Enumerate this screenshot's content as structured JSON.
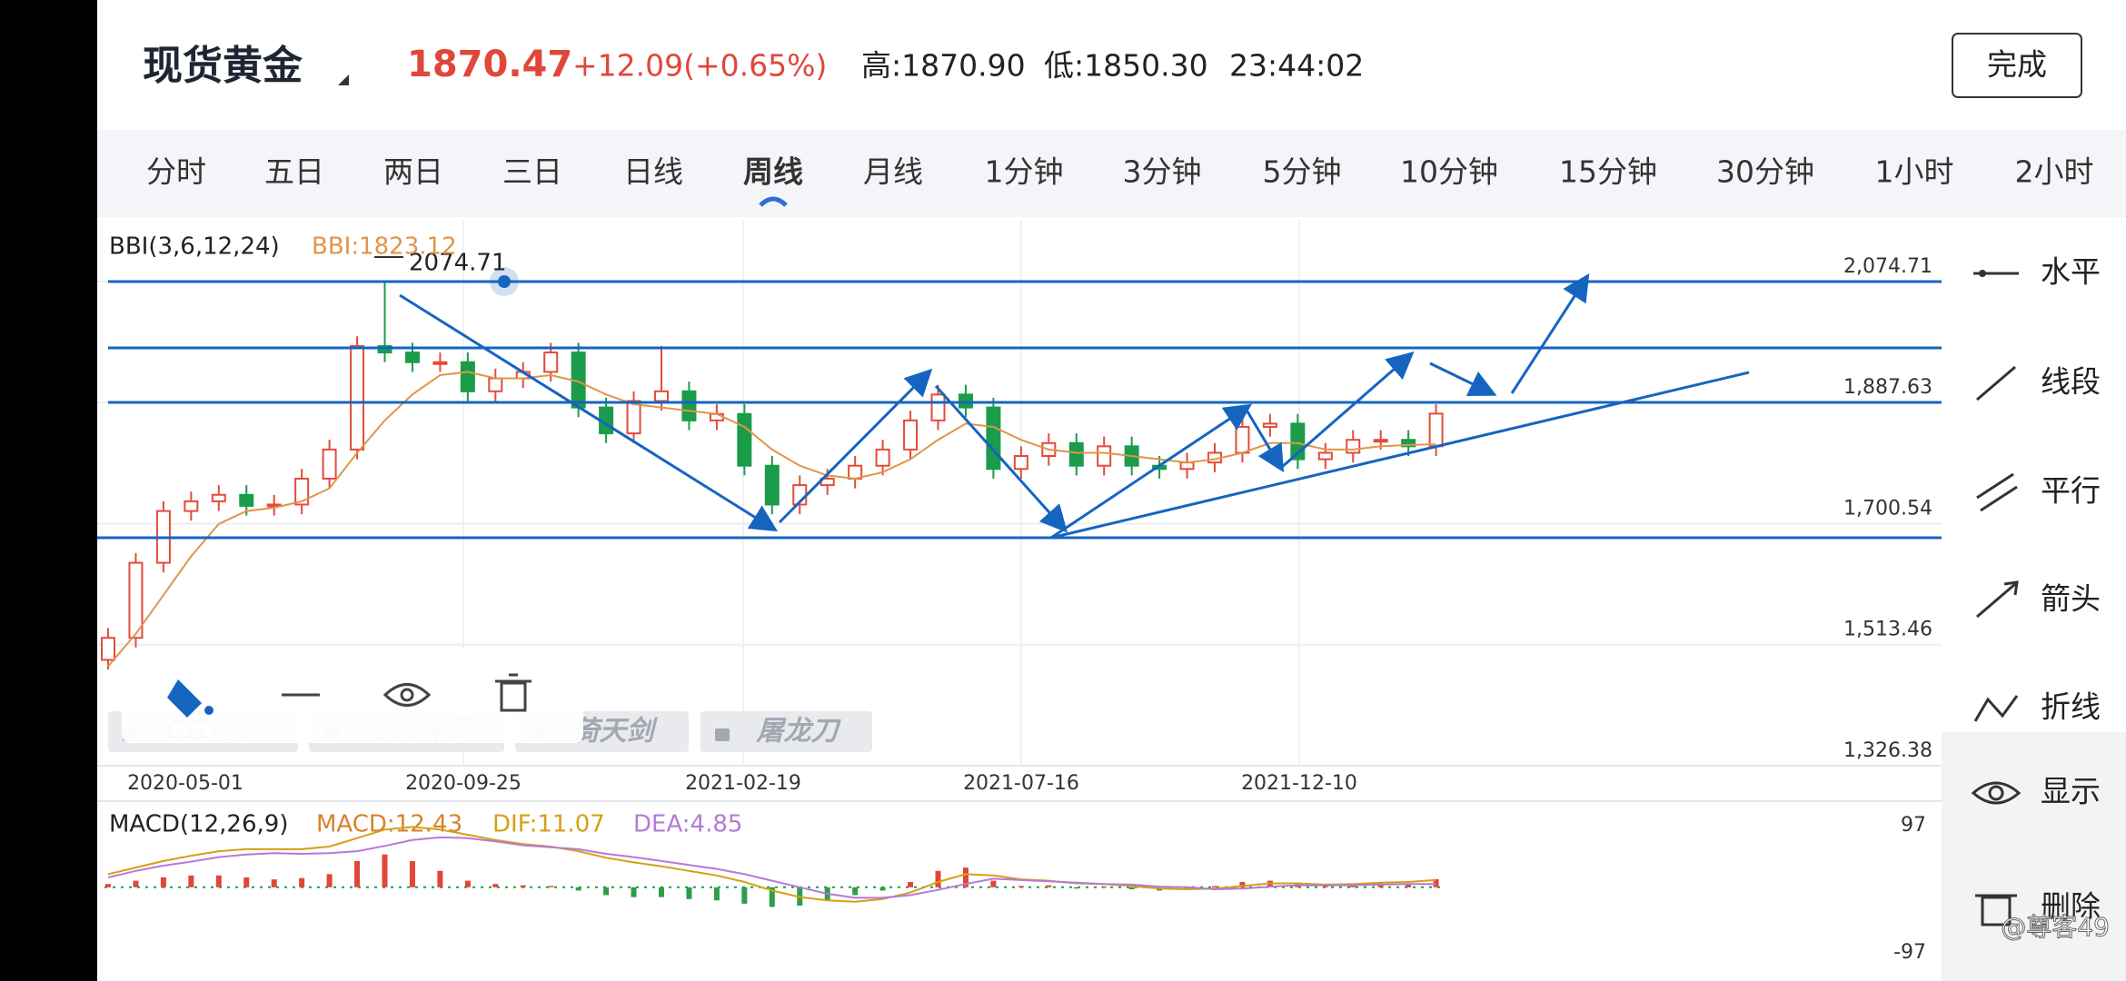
{
  "header": {
    "title": "现货黄金",
    "price": "1870.47",
    "change": "+12.09(+0.65%)",
    "high": "高:1870.90",
    "low": "低:1850.30",
    "time": "23:44:02",
    "done": "完成"
  },
  "tabs": [
    "分时",
    "五日",
    "两日",
    "三日",
    "日线",
    "周线",
    "月线",
    "1分钟",
    "3分钟",
    "5分钟",
    "10分钟",
    "15分钟",
    "30分钟",
    "1小时",
    "2小时"
  ],
  "active_tab": 5,
  "chart": {
    "type": "candlestick",
    "indicator": "BBI(3,6,12,24)",
    "bbi_label": "BBI:1823.12",
    "peak_label": "2074.71",
    "ylim": [
      1326.38,
      2170
    ],
    "yticks": [
      {
        "value": 2074.71,
        "label": "2,074.71"
      },
      {
        "value": 1887.63,
        "label": "1,887.63"
      },
      {
        "value": 1700.54,
        "label": "1,700.54"
      },
      {
        "value": 1513.46,
        "label": "1,513.46"
      },
      {
        "value": 1326.38,
        "label": "1,326.38"
      }
    ],
    "dates": [
      "2020-05-01",
      "2020-09-25",
      "2021-02-19",
      "2021-07-16",
      "2021-12-10"
    ],
    "up_color": "#e34b3b",
    "down_color": "#1a9c4b",
    "bbi_color": "#e0954a",
    "open": [
      1490,
      1524,
      1640,
      1720,
      1735,
      1745,
      1728,
      1730,
      1770,
      1815,
      1975,
      1965,
      1950,
      1950,
      1905,
      1925,
      1935,
      1965,
      1880,
      1840,
      1890,
      1905,
      1860,
      1870,
      1790,
      1730,
      1760,
      1770,
      1790,
      1815,
      1860,
      1900,
      1880,
      1785,
      1805,
      1825,
      1790,
      1820,
      1790,
      1785,
      1795,
      1810,
      1850,
      1855,
      1800,
      1810,
      1830,
      1830,
      1820
    ],
    "high": [
      1539,
      1655,
      1735,
      1750,
      1760,
      1760,
      1745,
      1785,
      1830,
      1990,
      2074.71,
      1980,
      1965,
      1965,
      1940,
      1950,
      1980,
      1980,
      1895,
      1905,
      1975,
      1920,
      1885,
      1885,
      1805,
      1775,
      1785,
      1805,
      1830,
      1875,
      1915,
      1915,
      1895,
      1820,
      1840,
      1840,
      1835,
      1835,
      1805,
      1810,
      1825,
      1865,
      1870,
      1870,
      1825,
      1845,
      1845,
      1845,
      1885
    ],
    "low": [
      1475,
      1509,
      1625,
      1705,
      1720,
      1713,
      1713,
      1715,
      1755,
      1800,
      1950,
      1935,
      1935,
      1890,
      1890,
      1910,
      1920,
      1865,
      1825,
      1825,
      1875,
      1845,
      1845,
      1775,
      1715,
      1715,
      1745,
      1755,
      1775,
      1800,
      1845,
      1865,
      1770,
      1770,
      1790,
      1775,
      1775,
      1775,
      1770,
      1770,
      1780,
      1795,
      1835,
      1785,
      1785,
      1795,
      1815,
      1805,
      1805
    ],
    "close": [
      1524,
      1640,
      1720,
      1735,
      1745,
      1728,
      1730,
      1770,
      1815,
      1975,
      1965,
      1950,
      1950,
      1905,
      1925,
      1935,
      1965,
      1880,
      1840,
      1890,
      1905,
      1860,
      1870,
      1790,
      1730,
      1760,
      1770,
      1790,
      1815,
      1860,
      1900,
      1880,
      1785,
      1805,
      1825,
      1790,
      1820,
      1790,
      1785,
      1795,
      1810,
      1850,
      1855,
      1800,
      1810,
      1830,
      1830,
      1820,
      1870.47
    ],
    "bbi": [
      1480,
      1530,
      1590,
      1650,
      1700,
      1720,
      1725,
      1735,
      1755,
      1810,
      1860,
      1900,
      1930,
      1935,
      1925,
      1925,
      1930,
      1920,
      1900,
      1885,
      1880,
      1875,
      1870,
      1850,
      1815,
      1790,
      1775,
      1770,
      1780,
      1800,
      1830,
      1855,
      1850,
      1830,
      1815,
      1810,
      1810,
      1805,
      1800,
      1795,
      1800,
      1810,
      1825,
      1825,
      1815,
      1815,
      1820,
      1822,
      1823.12
    ]
  },
  "macd": {
    "label": "MACD(12,26,9)",
    "macd_label": "MACD:12.43",
    "dif_label": "DIF:11.07",
    "dea_label": "DEA:4.85",
    "ylim": [
      -118,
      123
    ],
    "yticks": [
      97,
      -97
    ],
    "hist": [
      5,
      10,
      15,
      18,
      18,
      15,
      12,
      14,
      20,
      40,
      50,
      40,
      25,
      10,
      5,
      3,
      2,
      -5,
      -12,
      -15,
      -15,
      -18,
      -20,
      -25,
      -30,
      -28,
      -20,
      -12,
      -5,
      8,
      25,
      30,
      10,
      2,
      3,
      -2,
      1,
      -3,
      -5,
      -3,
      2,
      8,
      10,
      5,
      3,
      5,
      6,
      6,
      12.43
    ],
    "dif": [
      20,
      30,
      40,
      48,
      55,
      58,
      58,
      58,
      62,
      75,
      88,
      92,
      88,
      80,
      72,
      66,
      62,
      55,
      45,
      38,
      32,
      25,
      18,
      8,
      -5,
      -15,
      -20,
      -22,
      -18,
      -8,
      8,
      20,
      18,
      12,
      10,
      6,
      5,
      2,
      -2,
      -3,
      -2,
      2,
      6,
      6,
      4,
      5,
      7,
      8,
      11.07
    ],
    "dea": [
      15,
      25,
      33,
      39,
      46,
      50,
      52,
      51,
      52,
      55,
      63,
      72,
      76,
      75,
      70,
      64,
      61,
      58,
      51,
      46,
      40,
      34,
      28,
      20,
      10,
      0,
      -10,
      -16,
      -16,
      -12,
      -4,
      5,
      13,
      11,
      9,
      7,
      5,
      4,
      1,
      0,
      -3,
      -2,
      1,
      3,
      3,
      3,
      4,
      5,
      4.85
    ],
    "dif_color": "#d4a017",
    "dea_color": "#b57ad6"
  },
  "chips": [
    "CG指标",
    "波段神兵",
    "倚天剑",
    "屠龙刀"
  ],
  "tools": [
    "水平",
    "线段",
    "平行",
    "箭头",
    "折线",
    "显示",
    "删除"
  ],
  "watermark": "@尊客49"
}
